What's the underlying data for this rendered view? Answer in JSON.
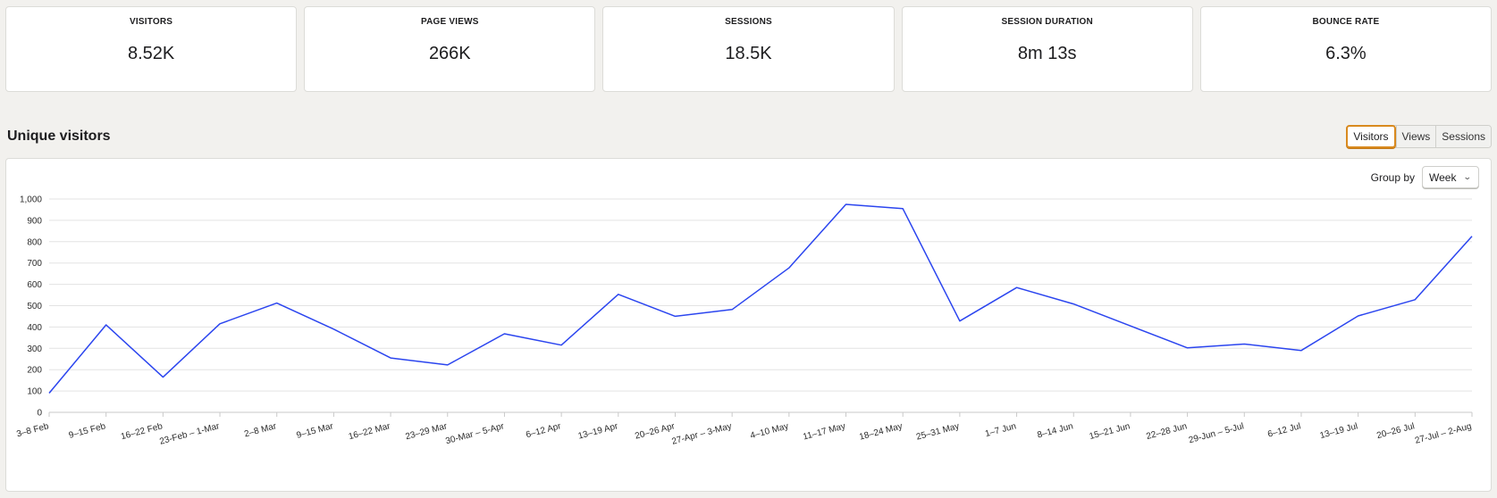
{
  "stats": [
    {
      "label": "VISITORS",
      "value": "8.52K"
    },
    {
      "label": "PAGE VIEWS",
      "value": "266K"
    },
    {
      "label": "SESSIONS",
      "value": "18.5K"
    },
    {
      "label": "SESSION DURATION",
      "value": "8m 13s"
    },
    {
      "label": "BOUNCE RATE",
      "value": "6.3%"
    }
  ],
  "section_title": "Unique visitors",
  "metric_toggle": {
    "options": [
      "Visitors",
      "Views",
      "Sessions"
    ],
    "selected": "Visitors"
  },
  "group_by": {
    "label": "Group by",
    "value": "Week"
  },
  "colors": {
    "line": "#2b45ef",
    "accent": "#d98a1f",
    "grid": "#e3e3e3"
  },
  "chart_data": {
    "type": "line",
    "title": "",
    "xlabel": "",
    "ylabel": "",
    "ylim": [
      0,
      1000
    ],
    "yticks": [
      0,
      100,
      200,
      300,
      400,
      500,
      600,
      700,
      800,
      900,
      1000
    ],
    "ytick_labels": [
      "0",
      "100",
      "200",
      "300",
      "400",
      "500",
      "600",
      "700",
      "800",
      "900",
      "1,000"
    ],
    "grid": true,
    "legend": "none",
    "categories": [
      "3–8 Feb",
      "9–15 Feb",
      "16–22 Feb",
      "23-Feb – 1-Mar",
      "2–8 Mar",
      "9–15 Mar",
      "16–22 Mar",
      "23–29 Mar",
      "30-Mar – 5-Apr",
      "6–12 Apr",
      "13–19 Apr",
      "20–26 Apr",
      "27-Apr – 3-May",
      "4–10 May",
      "11–17 May",
      "18–24 May",
      "25–31 May",
      "1–7 Jun",
      "8–14 Jun",
      "15–21 Jun",
      "22–28 Jun",
      "29-Jun – 5-Jul",
      "6–12 Jul",
      "13–19 Jul",
      "20–26 Jul",
      "27-Jul – 2-Aug"
    ],
    "series": [
      {
        "values": [
          90,
          410,
          165,
          415,
          512,
          390,
          255,
          222,
          368,
          315,
          553,
          450,
          482,
          677,
          975,
          955,
          428,
          585,
          508,
          405,
          302,
          320,
          290,
          452,
          528,
          825
        ]
      }
    ]
  }
}
